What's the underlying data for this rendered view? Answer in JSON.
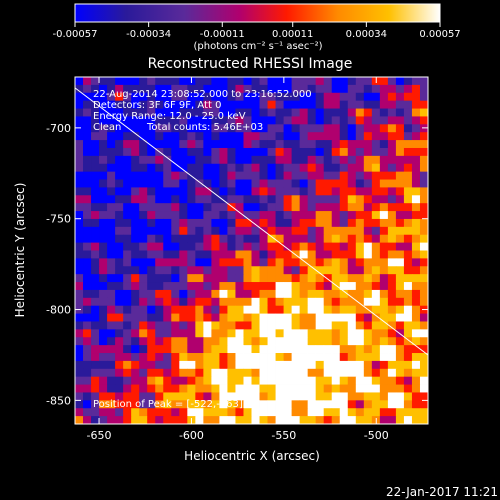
{
  "chart_data": {
    "type": "heatmap",
    "title": "Reconstructed RHESSI Image",
    "xlabel": "Heliocentric X (arcsec)",
    "ylabel": "Heliocentric Y (arcsec)",
    "xlim": [
      -663,
      -472
    ],
    "ylim": [
      -863,
      -672
    ],
    "xticks": [
      -650,
      -600,
      -550,
      -500
    ],
    "xtick_labels": [
      "-650",
      "-600",
      "-550",
      "-500"
    ],
    "yticks": [
      -700,
      -750,
      -800,
      -850
    ],
    "ytick_labels": [
      "-700",
      "-750",
      "-800",
      "-850"
    ],
    "colorbar": {
      "range": [
        -0.00057,
        0.00057
      ],
      "ticks": [
        -0.00057,
        -0.00034,
        -0.00011,
        0.00011,
        0.00034,
        0.00057
      ],
      "tick_labels": [
        "-0.00057",
        "-0.00034",
        "-0.00011",
        "0.00011",
        "0.00034",
        "0.00057"
      ],
      "unit_label": "(photons cm⁻² s⁻¹ asec⁻²)",
      "colors": [
        "#0000ff",
        "#2a1a9a",
        "#5a2a9a",
        "#b0006e",
        "#ff1a00",
        "#ff8a00",
        "#ffc000",
        "#ffffff"
      ]
    },
    "annotations": {
      "time": "22-Aug-2014 23:08:52.000 to 23:16:52.000",
      "detectors": "Detectors: 3F 6F 9F, Att 0",
      "energy": "Energy Range: 12.0 - 25.0 keV",
      "clean": "Clean",
      "counts": "Total counts: 5.46E+03",
      "peak": "Position of Peak = [-522,-863]"
    },
    "limb_line": {
      "x": [
        -663,
        -472
      ],
      "y": [
        -678,
        -825
      ]
    }
  },
  "footer": {
    "date": "22-Jan-2017 11:21"
  }
}
